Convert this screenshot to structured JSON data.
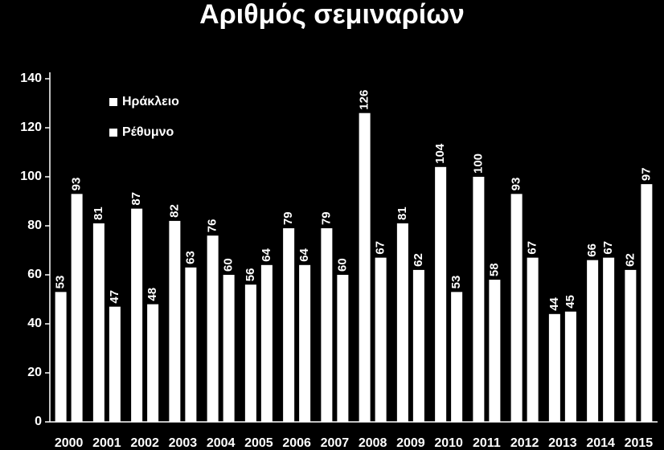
{
  "chart_data": {
    "type": "bar",
    "title": "Αριθμός σεμιναρίων",
    "categories": [
      "2000",
      "2001",
      "2002",
      "2003",
      "2004",
      "2005",
      "2006",
      "2007",
      "2008",
      "2009",
      "2010",
      "2011",
      "2012",
      "2013",
      "2014",
      "2015"
    ],
    "series": [
      {
        "name": "Ηράκλειο",
        "color": "#ffffff",
        "values": [
          53,
          81,
          87,
          82,
          76,
          56,
          79,
          79,
          126,
          81,
          104,
          100,
          93,
          44,
          66,
          62
        ]
      },
      {
        "name": "Ρέθυμνο",
        "color": "#ffffff",
        "values": [
          93,
          47,
          48,
          63,
          60,
          64,
          64,
          60,
          67,
          62,
          53,
          58,
          67,
          45,
          67,
          97
        ]
      }
    ],
    "ylim": [
      0,
      140
    ],
    "yticks": [
      0,
      20,
      40,
      60,
      80,
      100,
      120,
      140
    ],
    "legend": "top-left"
  }
}
